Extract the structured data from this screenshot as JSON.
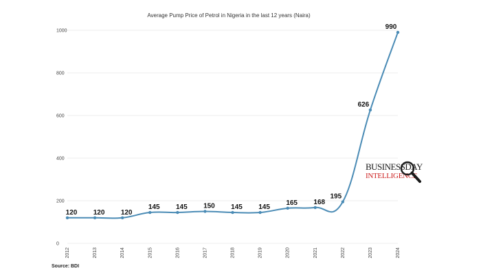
{
  "chart_data": {
    "type": "line",
    "title": "Average Pump Price of Petrol in Nigeria in the last 12 years (Naira)",
    "x": [
      "2012",
      "2013",
      "2014",
      "2015",
      "2016",
      "2017",
      "2018",
      "2019",
      "2020",
      "2021",
      "2022",
      "2023",
      "2024"
    ],
    "values": [
      120,
      120,
      120,
      145,
      145,
      150,
      145,
      145,
      165,
      168,
      195,
      626,
      990
    ],
    "data_labels": [
      "120",
      "120",
      "120",
      "145",
      "145",
      "150",
      "145",
      "145",
      "165",
      "168",
      "195",
      "626",
      "990"
    ],
    "yticks": [
      "0",
      "200",
      "400",
      "600",
      "800",
      "1000"
    ],
    "ylim": [
      0,
      1000
    ],
    "grid": true,
    "legend": "none",
    "line_color": "#4a8bb5",
    "grid_color": "#eeeeee"
  },
  "source": "Source: BDI",
  "watermark": {
    "line1": "BUSINESSDAY",
    "line2": "INTELLIGENCE",
    "icon": "magnifier-icon"
  }
}
